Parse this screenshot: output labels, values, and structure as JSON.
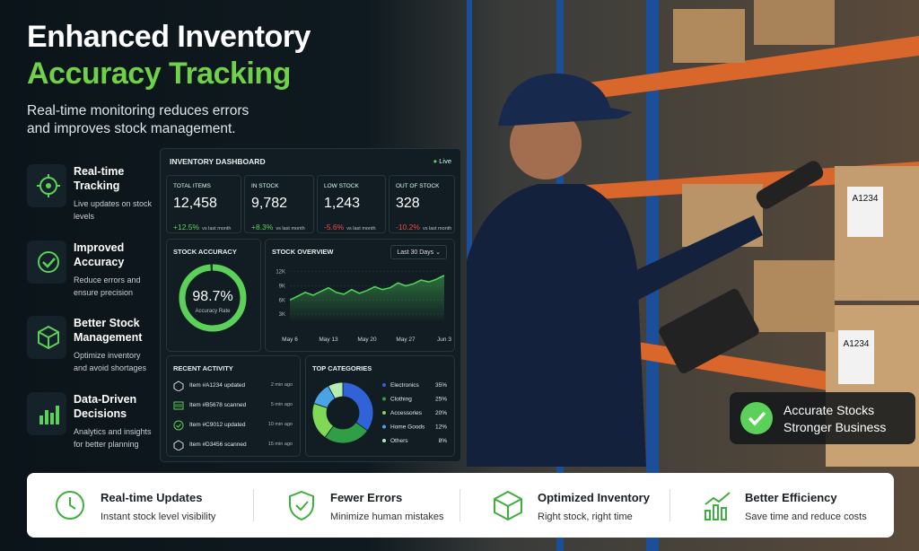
{
  "header": {
    "title_line1": "Enhanced Inventory",
    "title_line2": "Accuracy Tracking",
    "subtitle": "Real-time monitoring reduces errors and improves stock management."
  },
  "features": [
    {
      "title": "Real-time Tracking",
      "description": "Live updates on stock levels"
    },
    {
      "title": "Improved Accuracy",
      "description": "Reduce errors and ensure precision"
    },
    {
      "title": "Better Stock Management",
      "description": "Optimize inventory and avoid shortages"
    },
    {
      "title": "Data-Driven Decisions",
      "description": "Analytics and insights for better planning"
    }
  ],
  "dashboard": {
    "title": "INVENTORY DASHBOARD",
    "status": "Live",
    "kpis": [
      {
        "label": "TOTAL ITEMS",
        "value": "12,458",
        "change": "+12.5%",
        "note": "vs last month"
      },
      {
        "label": "IN STOCK",
        "value": "9,782",
        "change": "+8.3%",
        "note": "vs last month"
      },
      {
        "label": "LOW STOCK",
        "value": "1,243",
        "change": "-5.6%",
        "note": "vs last month"
      },
      {
        "label": "OUT OF STOCK",
        "value": "328",
        "change": "-10.2%",
        "note": "vs last month"
      }
    ],
    "stock_accuracy": {
      "type": "gauge",
      "title": "STOCK ACCURACY",
      "value": 98.7,
      "value_label": "98.7%",
      "caption": "Accuracy Rate",
      "ylim": [
        0,
        100
      ],
      "color": "#5cd15a"
    },
    "stock_overview": {
      "type": "area",
      "title": "STOCK OVERVIEW",
      "range": "Last 30 Days",
      "categories": [
        "May 6",
        null,
        null,
        null,
        null,
        "May 13",
        null,
        null,
        null,
        null,
        "May 20",
        null,
        null,
        null,
        null,
        "May 27",
        null,
        null,
        null,
        null,
        "Jun 3"
      ],
      "values": [
        6000,
        6800,
        7600,
        7000,
        7800,
        8600,
        7600,
        7200,
        8200,
        7400,
        8000,
        8800,
        8200,
        8600,
        9600,
        9000,
        9400,
        10200,
        9800,
        10400,
        11200
      ],
      "ylim": [
        1500,
        12500
      ],
      "yticks": [
        {
          "value": 3000,
          "label": "3K"
        },
        {
          "value": 6000,
          "label": "6K"
        },
        {
          "value": 9000,
          "label": "9K"
        },
        {
          "value": 12000,
          "label": "12K"
        }
      ],
      "grid": true,
      "color": "#4fd15a"
    },
    "recent_activity": {
      "title": "RECENT ACTIVITY",
      "items": [
        {
          "text": "Item #A1234 updated",
          "time": "2 min ago"
        },
        {
          "text": "Item #B5678 scanned",
          "time": "5 min ago"
        },
        {
          "text": "Item #C9012 updated",
          "time": "10 min ago"
        },
        {
          "text": "Item #D3456 scanned",
          "time": "15 min ago"
        }
      ]
    },
    "top_categories": {
      "type": "donut",
      "title": "TOP CATEGORIES",
      "categories": [
        "Electronics",
        "Clothing",
        "Accessories",
        "Home Goods",
        "Others"
      ],
      "values": [
        35,
        25,
        20,
        12,
        8
      ],
      "value_labels": [
        "35%",
        "25%",
        "20%",
        "12%",
        "8%"
      ],
      "colors": [
        "#2f63d6",
        "#2f9e46",
        "#7fd957",
        "#4aa3e6",
        "#b5ecb0"
      ]
    }
  },
  "scene": {
    "box_labels": [
      "A1234",
      "A1234"
    ]
  },
  "badge": {
    "line1": "Accurate Stocks",
    "line2": "Stronger Business"
  },
  "footer": [
    {
      "title": "Real-time Updates",
      "description": "Instant stock level visibility"
    },
    {
      "title": "Fewer Errors",
      "description": "Minimize human mistakes"
    },
    {
      "title": "Optimized Inventory",
      "description": "Right stock, right time"
    },
    {
      "title": "Better Efficiency",
      "description": "Save time and reduce costs"
    }
  ]
}
